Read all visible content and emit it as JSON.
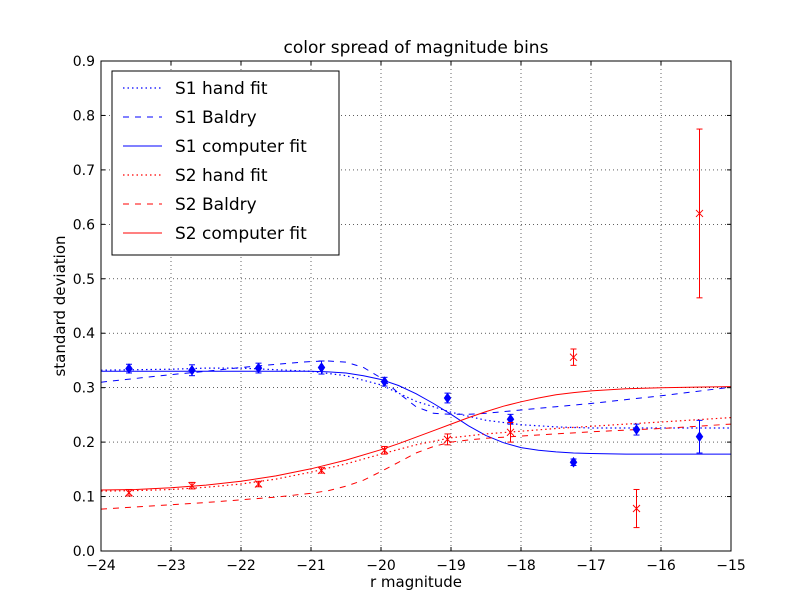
{
  "chart_data": {
    "type": "line",
    "title": "color spread of magnitude bins",
    "xlabel": "r magnitude",
    "ylabel": "standard deviation",
    "xlim": [
      -24,
      -15
    ],
    "ylim": [
      0.0,
      0.9
    ],
    "xticks": [
      -24,
      -23,
      -22,
      -21,
      -20,
      -19,
      -18,
      -17,
      -16,
      -15
    ],
    "yticks": [
      0.0,
      0.1,
      0.2,
      0.3,
      0.4,
      0.5,
      0.6,
      0.7,
      0.8,
      0.9
    ],
    "xtick_labels": [
      "−24",
      "−23",
      "−22",
      "−21",
      "−20",
      "−19",
      "−18",
      "−17",
      "−16",
      "−15"
    ],
    "ytick_labels": [
      "0.0",
      "0.1",
      "0.2",
      "0.3",
      "0.4",
      "0.5",
      "0.6",
      "0.7",
      "0.8",
      "0.9"
    ],
    "grid": true,
    "legend_position": "top-left",
    "colors": {
      "S1": "#0000ff",
      "S2": "#ff0000"
    },
    "series": [
      {
        "name": "S1 hand fit",
        "style": "dotted",
        "color": "#0000ff",
        "x": [
          -24,
          -23.5,
          -23,
          -22.5,
          -22,
          -21.5,
          -21,
          -20.5,
          -20,
          -19.5,
          -19,
          -18.5,
          -18,
          -17.5,
          -17,
          -16.5,
          -16,
          -15.5,
          -15
        ],
        "y": [
          0.332,
          0.333,
          0.334,
          0.336,
          0.336,
          0.333,
          0.33,
          0.322,
          0.305,
          0.275,
          0.255,
          0.24,
          0.232,
          0.228,
          0.226,
          0.226,
          0.226,
          0.226,
          0.226
        ]
      },
      {
        "name": "S1 Baldry",
        "style": "dashed",
        "color": "#0000ff",
        "x": [
          -24,
          -23.5,
          -23,
          -22.5,
          -22,
          -21.5,
          -21,
          -20.75,
          -20.5,
          -20.25,
          -20,
          -19.75,
          -19.5,
          -19.25,
          -19,
          -18.75,
          -18.5,
          -18.25,
          -18,
          -17.5,
          -17,
          -16.5,
          -16,
          -15.5,
          -15
        ],
        "y": [
          0.31,
          0.317,
          0.324,
          0.33,
          0.337,
          0.343,
          0.348,
          0.349,
          0.347,
          0.337,
          0.318,
          0.29,
          0.265,
          0.253,
          0.251,
          0.251,
          0.253,
          0.256,
          0.259,
          0.265,
          0.271,
          0.278,
          0.285,
          0.293,
          0.301
        ]
      },
      {
        "name": "S1 computer fit",
        "style": "solid",
        "color": "#0000ff",
        "x": [
          -24,
          -23.5,
          -23,
          -22.5,
          -22,
          -21.5,
          -21,
          -20.75,
          -20.5,
          -20.25,
          -20,
          -19.75,
          -19.5,
          -19.25,
          -19,
          -18.75,
          -18.5,
          -18.25,
          -18,
          -17.75,
          -17.5,
          -17.25,
          -17,
          -16.5,
          -16,
          -15.5,
          -15
        ],
        "y": [
          0.33,
          0.33,
          0.33,
          0.33,
          0.33,
          0.33,
          0.33,
          0.329,
          0.327,
          0.322,
          0.315,
          0.304,
          0.289,
          0.271,
          0.251,
          0.23,
          0.212,
          0.199,
          0.19,
          0.185,
          0.182,
          0.18,
          0.179,
          0.178,
          0.178,
          0.178,
          0.178
        ]
      },
      {
        "name": "S2 hand fit",
        "style": "dotted",
        "color": "#ff0000",
        "x": [
          -24,
          -23.5,
          -23,
          -22.5,
          -22,
          -21.5,
          -21,
          -20.5,
          -20,
          -19.5,
          -19,
          -18.5,
          -18,
          -17.5,
          -17,
          -16.5,
          -16,
          -15.5,
          -15
        ],
        "y": [
          0.11,
          0.111,
          0.113,
          0.117,
          0.123,
          0.132,
          0.145,
          0.16,
          0.178,
          0.195,
          0.208,
          0.215,
          0.22,
          0.225,
          0.229,
          0.233,
          0.237,
          0.241,
          0.245
        ]
      },
      {
        "name": "S2 Baldry",
        "style": "dashed",
        "color": "#ff0000",
        "x": [
          -24,
          -23.5,
          -23,
          -22.5,
          -22,
          -21.5,
          -21,
          -20.75,
          -20.5,
          -20.25,
          -20,
          -19.75,
          -19.5,
          -19.25,
          -19,
          -18.75,
          -18.5,
          -18.25,
          -18,
          -17.5,
          -17,
          -16.5,
          -16,
          -15.5,
          -15
        ],
        "y": [
          0.077,
          0.081,
          0.085,
          0.089,
          0.094,
          0.099,
          0.106,
          0.111,
          0.119,
          0.13,
          0.146,
          0.163,
          0.18,
          0.192,
          0.2,
          0.204,
          0.207,
          0.209,
          0.211,
          0.215,
          0.219,
          0.222,
          0.225,
          0.229,
          0.233
        ]
      },
      {
        "name": "S2 computer fit",
        "style": "solid",
        "color": "#ff0000",
        "x": [
          -24,
          -23.5,
          -23,
          -22.5,
          -22,
          -21.5,
          -21,
          -20.5,
          -20,
          -19.75,
          -19.5,
          -19.25,
          -19,
          -18.75,
          -18.5,
          -18.25,
          -18,
          -17.75,
          -17.5,
          -17.25,
          -17,
          -16.5,
          -16,
          -15.5,
          -15
        ],
        "y": [
          0.112,
          0.113,
          0.116,
          0.121,
          0.128,
          0.138,
          0.151,
          0.167,
          0.186,
          0.197,
          0.209,
          0.221,
          0.233,
          0.245,
          0.256,
          0.266,
          0.274,
          0.281,
          0.287,
          0.291,
          0.294,
          0.298,
          0.3,
          0.301,
          0.302
        ]
      }
    ],
    "points": [
      {
        "name": "S1 data",
        "marker": "diamond",
        "color": "#0000ff",
        "x": [
          -23.6,
          -22.7,
          -21.75,
          -20.85,
          -19.95,
          -19.05,
          -18.15,
          -17.25,
          -16.35,
          -15.45
        ],
        "y": [
          0.335,
          0.332,
          0.336,
          0.337,
          0.311,
          0.281,
          0.242,
          0.163,
          0.223,
          0.21
        ],
        "err": [
          0.008,
          0.01,
          0.009,
          0.012,
          0.008,
          0.009,
          0.009,
          0.006,
          0.01,
          0.03
        ]
      },
      {
        "name": "S2 data",
        "marker": "x",
        "color": "#ff0000",
        "x": [
          -23.6,
          -22.7,
          -21.75,
          -20.85,
          -19.95,
          -19.05,
          -18.15,
          -17.25,
          -16.35,
          -15.45
        ],
        "y": [
          0.107,
          0.12,
          0.123,
          0.148,
          0.185,
          0.205,
          0.218,
          0.356,
          0.078,
          0.62
        ],
        "err": [
          0.006,
          0.006,
          0.005,
          0.005,
          0.007,
          0.01,
          0.018,
          0.015,
          0.035,
          0.155
        ]
      }
    ]
  }
}
